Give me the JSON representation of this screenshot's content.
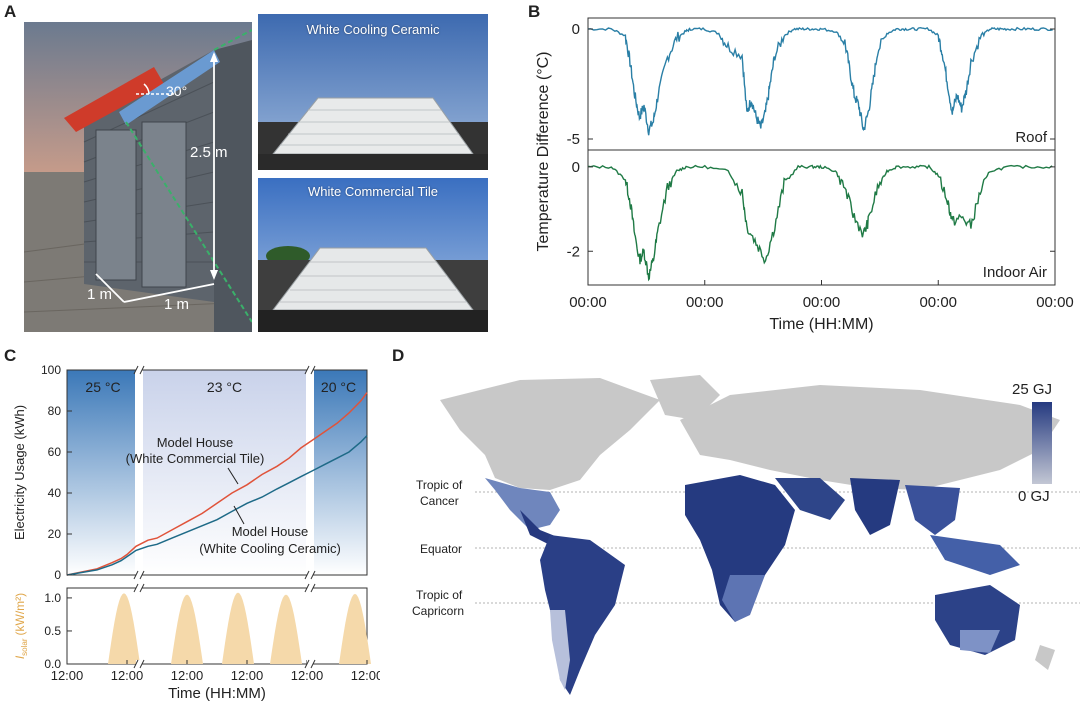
{
  "panels": {
    "a": {
      "letter": "A",
      "angle_label": "30°",
      "height_label": "2.5 m",
      "width_label": "1 m",
      "depth_label": "1 m",
      "photo_top_caption": "White Cooling Ceramic",
      "photo_bottom_caption": "White Commercial Tile"
    },
    "b": {
      "letter": "B",
      "ylabel": "Temperature Difference (°C)",
      "xlabel": "Time (HH:MM)",
      "top_label": "Roof",
      "bottom_label": "Indoor Air"
    },
    "c": {
      "letter": "C",
      "ylabel": "Electricity Usage (kWh)",
      "ylabel_solar_main": "I",
      "ylabel_solar_sub": "solar",
      "ylabel_solar_unit": "(kW/m²)",
      "xlabel": "Time (HH:MM)",
      "zone_labels": [
        "25 °C",
        "23 °C",
        "20 °C"
      ],
      "series_label_tile": [
        "Model House",
        "(White Commercial Tile)"
      ],
      "series_label_ceramic": [
        "Model House",
        "(White Cooling Ceramic)"
      ]
    },
    "d": {
      "letter": "D",
      "colorbar_max": "25 GJ",
      "colorbar_min": "0 GJ",
      "lat_labels": [
        "Tropic of",
        "Cancer",
        "Equator",
        "Tropic of",
        "Capricorn"
      ],
      "colors": {
        "high": "#253a80",
        "low": "#c3c7d4",
        "none": "#c8c8c8"
      }
    }
  },
  "chart_data": [
    {
      "type": "line",
      "panel": "B-top",
      "ylabel": "Temperature Difference (°C)",
      "xlabel": "Time (HH:MM)",
      "annotation": "Roof",
      "x_ticks": [
        "00:00",
        "00:00",
        "00:00",
        "00:00",
        "00:00"
      ],
      "y_ticks": [
        "0",
        "-5"
      ],
      "ylim": [
        -5.5,
        0.5
      ],
      "color": "#2a7fa6",
      "series": [
        {
          "x": [
            0,
            0.05,
            0.08,
            0.09,
            0.1,
            0.11,
            0.12,
            0.13,
            0.14,
            0.15,
            0.17,
            0.19,
            0.21,
            0.22,
            0.25,
            0.28,
            0.3,
            0.33,
            0.34,
            0.35,
            0.36,
            0.37,
            0.38,
            0.39,
            0.4,
            0.42,
            0.44,
            0.46,
            0.48,
            0.5,
            0.53,
            0.55,
            0.56,
            0.57,
            0.58,
            0.59,
            0.6,
            0.61,
            0.62,
            0.64,
            0.66,
            0.68,
            0.7,
            0.73,
            0.75,
            0.76,
            0.77,
            0.78,
            0.79,
            0.8,
            0.81,
            0.82,
            0.84,
            0.86,
            0.88,
            0.9,
            0.93,
            0.96,
            1.0
          ],
          "values": [
            0,
            0,
            -0.3,
            -1.5,
            -3.0,
            -4.0,
            -3.5,
            -4.6,
            -4.2,
            -3.0,
            -1.3,
            -0.4,
            -0.1,
            0,
            0,
            -0.2,
            -0.8,
            -1.2,
            -3.8,
            -3.2,
            -4.0,
            -4.5,
            -3.8,
            -2.5,
            -1.2,
            -0.3,
            0,
            0,
            0,
            0,
            -0.1,
            -0.6,
            -1.8,
            -3.0,
            -3.5,
            -4.6,
            -3.8,
            -2.5,
            -1.0,
            -0.2,
            0,
            0,
            0,
            0,
            -0.3,
            -1.2,
            -2.5,
            -3.8,
            -3.0,
            -3.6,
            -2.8,
            -1.5,
            -0.4,
            0,
            0,
            0,
            0,
            0,
            0
          ]
        }
      ]
    },
    {
      "type": "line",
      "panel": "B-bottom",
      "annotation": "Indoor Air",
      "y_ticks": [
        "0",
        "-2"
      ],
      "ylim": [
        -2.8,
        0.4
      ],
      "color": "#1f7a45",
      "series": [
        {
          "x": [
            0,
            0.05,
            0.08,
            0.09,
            0.1,
            0.11,
            0.12,
            0.13,
            0.14,
            0.15,
            0.17,
            0.19,
            0.21,
            0.25,
            0.3,
            0.33,
            0.34,
            0.36,
            0.38,
            0.4,
            0.42,
            0.45,
            0.48,
            0.5,
            0.53,
            0.55,
            0.57,
            0.59,
            0.6,
            0.62,
            0.64,
            0.66,
            0.7,
            0.73,
            0.75,
            0.77,
            0.78,
            0.8,
            0.82,
            0.84,
            0.86,
            0.9,
            0.95,
            1.0
          ],
          "values": [
            0,
            0,
            -0.3,
            -0.8,
            -1.6,
            -2.2,
            -2.0,
            -2.6,
            -2.2,
            -1.5,
            -0.5,
            -0.1,
            0,
            0,
            -0.1,
            -0.6,
            -1.4,
            -1.8,
            -2.2,
            -1.4,
            -0.4,
            0,
            0,
            0,
            -0.1,
            -0.5,
            -1.2,
            -1.6,
            -1.3,
            -0.5,
            -0.1,
            0,
            0,
            0,
            -0.2,
            -0.8,
            -1.3,
            -1.2,
            -1.4,
            -0.6,
            -0.1,
            0,
            0,
            0
          ]
        }
      ]
    },
    {
      "type": "line",
      "panel": "C-top",
      "ylabel": "Electricity Usage (kWh)",
      "y_ticks": [
        "0",
        "20",
        "40",
        "60",
        "80",
        "100"
      ],
      "ylim": [
        0,
        100
      ],
      "series": [
        {
          "name": "Model House (White Commercial Tile)",
          "color": "#e0533a",
          "x": [
            0,
            0.1,
            0.15,
            0.18,
            0.2,
            0.23,
            0.27,
            0.3,
            0.35,
            0.4,
            0.45,
            0.5,
            0.55,
            0.6,
            0.65,
            0.7,
            0.74,
            0.78,
            0.82,
            0.86,
            0.9,
            0.94,
            0.98,
            1.0
          ],
          "values": [
            0,
            3,
            6,
            8,
            10,
            14,
            17,
            18,
            22,
            26,
            30,
            35,
            40,
            44,
            49,
            53,
            57,
            62,
            66,
            70,
            74,
            79,
            85,
            89
          ]
        },
        {
          "name": "Model House (White Cooling Ceramic)",
          "color": "#1e6a87",
          "x": [
            0,
            0.1,
            0.15,
            0.18,
            0.2,
            0.23,
            0.27,
            0.3,
            0.35,
            0.4,
            0.45,
            0.5,
            0.55,
            0.6,
            0.65,
            0.7,
            0.74,
            0.78,
            0.82,
            0.86,
            0.9,
            0.94,
            0.98,
            1.0
          ],
          "values": [
            0,
            2.5,
            5,
            7,
            9,
            12,
            14,
            15,
            18,
            21,
            24,
            27,
            31,
            35,
            38,
            42,
            45,
            48,
            51,
            54,
            57,
            60,
            65,
            68
          ]
        }
      ]
    },
    {
      "type": "area",
      "panel": "C-bottom",
      "ylabel": "I solar (kW/m²)",
      "xlabel": "Time (HH:MM)",
      "x_ticks": [
        "12:00",
        "12:00",
        "12:00",
        "12:00",
        "12:00",
        "12:00"
      ],
      "y_ticks": [
        "0.0",
        "0.5",
        "1.0"
      ],
      "ylim": [
        0,
        1.15
      ],
      "color": "#f5d9aa",
      "series": [
        {
          "name": "solar",
          "peaks_x": [
            0.19,
            0.4,
            0.57,
            0.73,
            0.96
          ],
          "peak_values": [
            1.07,
            1.05,
            1.08,
            1.05,
            1.06
          ]
        }
      ]
    }
  ]
}
